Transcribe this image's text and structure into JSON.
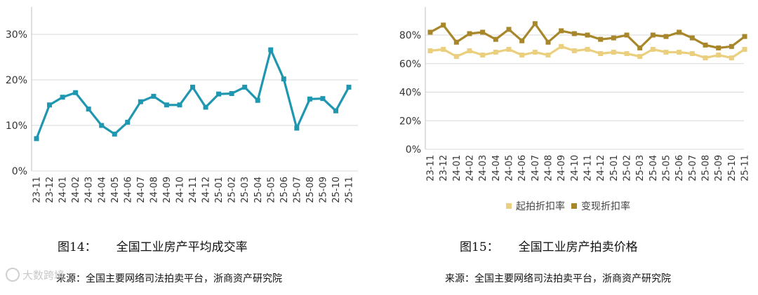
{
  "chart_data": [
    {
      "type": "line",
      "categories": [
        "23-11",
        "23-12",
        "24-01",
        "24-02",
        "24-03",
        "24-04",
        "24-05",
        "24-06",
        "24-07",
        "24-08",
        "24-09",
        "24-10",
        "24-11",
        "24-12",
        "25-01",
        "25-02",
        "25-03",
        "25-04",
        "25-05",
        "25-06",
        "25-07",
        "25-08",
        "25-09",
        "25-10",
        "25-11"
      ],
      "series": [
        {
          "values": [
            7.1,
            14.5,
            16.2,
            17.2,
            13.6,
            10.0,
            8.1,
            10.7,
            15.2,
            16.4,
            14.5,
            14.5,
            18.4,
            14.0,
            16.9,
            17.0,
            18.4,
            15.5,
            26.6,
            20.2,
            9.4,
            15.8,
            15.9,
            13.2,
            18.4
          ],
          "color": "#1f97b1"
        }
      ],
      "yticks": [
        "0%",
        "10%",
        "20%",
        "30%"
      ],
      "ylim": [
        0,
        33
      ],
      "grid": true,
      "legend": "none"
    },
    {
      "type": "line",
      "categories": [
        "23-11",
        "23-12",
        "24-01",
        "24-02",
        "24-03",
        "24-04",
        "24-05",
        "24-06",
        "24-07",
        "24-08",
        "24-09",
        "24-10",
        "24-11",
        "24-12",
        "25-01",
        "25-02",
        "25-03",
        "25-04",
        "25-05",
        "25-06",
        "25-07",
        "25-08",
        "25-09",
        "25-10",
        "25-11"
      ],
      "series": [
        {
          "name": "起拍折扣率",
          "color": "#e9cf7e",
          "values": [
            69,
            70,
            65,
            69,
            66,
            68,
            70,
            66,
            68,
            66,
            72,
            69,
            70,
            67,
            68,
            67,
            65,
            70,
            68,
            68,
            67,
            64,
            66,
            64,
            70
          ]
        },
        {
          "name": "变现折扣率",
          "color": "#a8862a",
          "values": [
            82,
            87,
            75,
            81,
            82,
            77,
            84,
            76,
            88,
            75,
            83,
            81,
            80,
            77,
            78,
            80,
            71,
            80,
            79,
            82,
            78,
            73,
            71,
            72,
            79
          ]
        }
      ],
      "yticks": [
        "0%",
        "20%",
        "40%",
        "60%",
        "80%"
      ],
      "ylim": [
        0,
        95
      ],
      "grid": true,
      "legend": "bottom"
    }
  ],
  "captions": {
    "left_num": "图14：",
    "left_title": "全国工业房产平均成交率",
    "right_num": "图15：",
    "right_title": "全国工业房产拍卖价格"
  },
  "sources": {
    "left": "来源：全国主要网络司法拍卖平台，浙商资产研究院",
    "right": "来源：全国主要网络司法拍卖平台，浙商资产研究院"
  },
  "watermark": "大数跨境"
}
